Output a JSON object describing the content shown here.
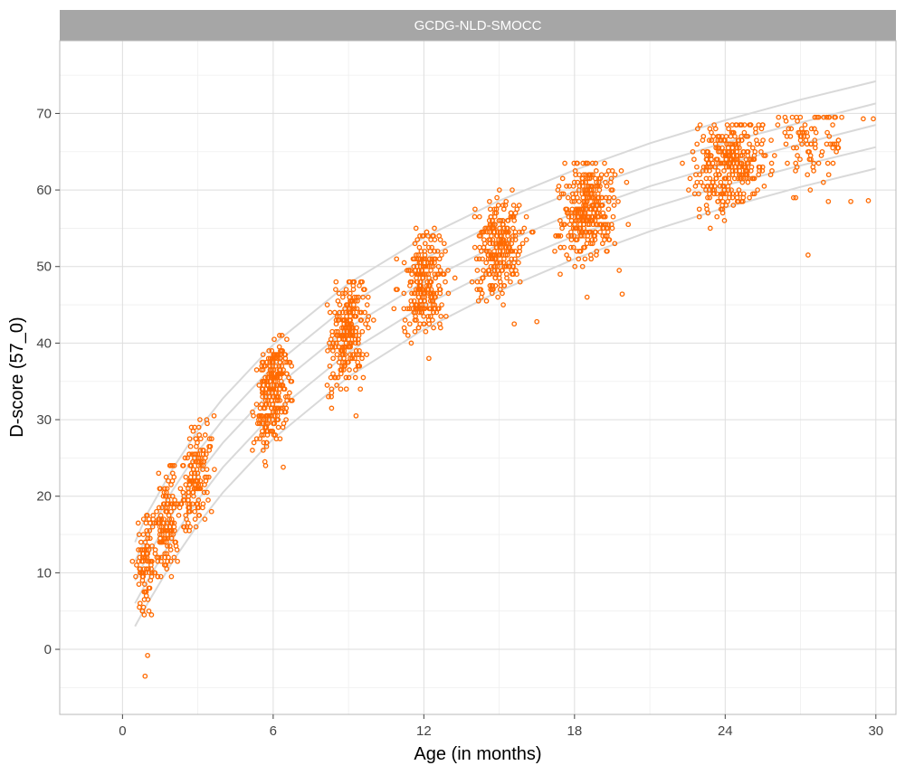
{
  "chart_data": {
    "type": "scatter",
    "title": "",
    "facet_label": "GCDG-NLD-SMOCC",
    "xlabel": "Age (in months)",
    "ylabel": "D-score (57_0)",
    "xlim": [
      -2.5,
      30.8
    ],
    "ylim": [
      -8.5,
      79.5
    ],
    "x_ticks": [
      0,
      6,
      12,
      18,
      24,
      30
    ],
    "y_ticks": [
      0,
      10,
      20,
      30,
      40,
      50,
      60,
      70
    ],
    "grid": true,
    "point_color": "#ff6a00",
    "reference_color": "#d9d9d9",
    "reference_curves": [
      {
        "x": [
          0.5,
          1,
          2,
          3,
          4,
          6,
          9,
          12,
          15,
          18,
          21,
          24,
          27,
          30
        ],
        "y": [
          3.0,
          6.0,
          11.5,
          16.3,
          20.5,
          27.5,
          35.6,
          41.8,
          46.8,
          51.0,
          54.6,
          57.7,
          60.4,
          62.8
        ]
      },
      {
        "x": [
          0.5,
          1,
          2,
          3,
          4,
          6,
          9,
          12,
          15,
          18,
          21,
          24,
          27,
          30
        ],
        "y": [
          6.0,
          9.0,
          14.5,
          19.5,
          23.8,
          30.8,
          38.8,
          44.9,
          49.9,
          54.0,
          57.6,
          60.6,
          63.2,
          65.6
        ]
      },
      {
        "x": [
          0.5,
          1,
          2,
          3,
          4,
          6,
          9,
          12,
          15,
          18,
          21,
          24,
          27,
          30
        ],
        "y": [
          9.0,
          12.2,
          17.8,
          22.8,
          27.0,
          34.0,
          42.0,
          48.0,
          52.9,
          57.0,
          60.5,
          63.4,
          66.0,
          68.5
        ]
      },
      {
        "x": [
          0.5,
          1,
          2,
          3,
          4,
          6,
          9,
          12,
          15,
          18,
          21,
          24,
          27,
          30
        ],
        "y": [
          11.5,
          15.0,
          20.8,
          25.8,
          30.0,
          37.0,
          45.0,
          51.0,
          55.8,
          59.8,
          63.2,
          66.2,
          68.8,
          71.3
        ]
      },
      {
        "x": [
          0.5,
          1,
          2,
          3,
          4,
          6,
          9,
          12,
          15,
          18,
          21,
          24,
          27,
          30
        ],
        "y": [
          14.0,
          17.8,
          23.6,
          28.6,
          32.8,
          39.8,
          47.8,
          53.8,
          58.6,
          62.6,
          66.1,
          69.1,
          71.8,
          74.2
        ]
      }
    ],
    "point_clusters": [
      {
        "x_center": 0.9,
        "x_spread": 0.35,
        "y_min": 3.5,
        "y_max": 17.5,
        "n": 90
      },
      {
        "x_center": 1.8,
        "x_spread": 0.45,
        "y_min": 9.5,
        "y_max": 24.0,
        "n": 130
      },
      {
        "x_center": 2.9,
        "x_spread": 0.55,
        "y_min": 13.0,
        "y_max": 33.5,
        "n": 150
      },
      {
        "x_center": 6.0,
        "x_spread": 0.6,
        "y_min": 24.0,
        "y_max": 41.0,
        "n": 260
      },
      {
        "x_center": 9.0,
        "x_spread": 0.7,
        "y_min": 31.0,
        "y_max": 48.0,
        "n": 240
      },
      {
        "x_center": 12.0,
        "x_spread": 0.8,
        "y_min": 38.5,
        "y_max": 55.0,
        "n": 240
      },
      {
        "x_center": 15.0,
        "x_spread": 0.9,
        "y_min": 43.0,
        "y_max": 60.0,
        "n": 260
      },
      {
        "x_center": 18.5,
        "x_spread": 1.0,
        "y_min": 46.5,
        "y_max": 63.5,
        "n": 320
      },
      {
        "x_center": 24.2,
        "x_spread": 1.3,
        "y_min": 51.5,
        "y_max": 68.5,
        "n": 320
      },
      {
        "x_center": 27.5,
        "x_spread": 1.3,
        "y_min": 58.0,
        "y_max": 69.5,
        "n": 90
      }
    ],
    "outliers": [
      {
        "x": 0.9,
        "y": -3.5
      },
      {
        "x": 1.0,
        "y": -0.8
      },
      {
        "x": 5.7,
        "y": 24.0
      },
      {
        "x": 6.4,
        "y": 23.8
      },
      {
        "x": 9.3,
        "y": 30.5
      },
      {
        "x": 12.2,
        "y": 38.0
      },
      {
        "x": 15.6,
        "y": 42.5
      },
      {
        "x": 16.5,
        "y": 42.8
      },
      {
        "x": 18.5,
        "y": 46.0
      },
      {
        "x": 19.9,
        "y": 46.4
      },
      {
        "x": 27.3,
        "y": 51.5
      },
      {
        "x": 29.0,
        "y": 58.5
      },
      {
        "x": 29.7,
        "y": 58.6
      },
      {
        "x": 29.5,
        "y": 69.3
      },
      {
        "x": 29.9,
        "y": 69.3
      }
    ]
  }
}
